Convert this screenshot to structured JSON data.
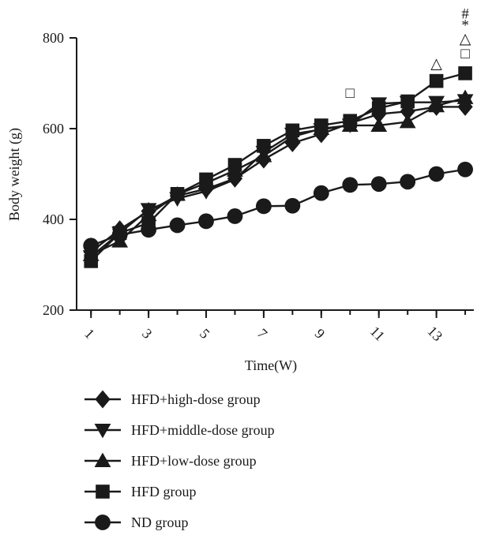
{
  "chart_data": {
    "type": "line",
    "xlabel": "Time(W)",
    "ylabel": "Body weight (g)",
    "x": [
      1,
      2,
      3,
      4,
      5,
      6,
      7,
      8,
      9,
      10,
      11,
      12,
      13,
      14
    ],
    "x_ticks": [
      1,
      3,
      5,
      7,
      9,
      11,
      13
    ],
    "x_tick_labels": [
      "1",
      "3",
      "5",
      "7",
      "9",
      "11",
      "13"
    ],
    "xlim": [
      0.5,
      14.3
    ],
    "ylim": [
      200,
      800
    ],
    "y_ticks": [
      200,
      400,
      600,
      800
    ],
    "y_tick_labels": [
      "200",
      "400",
      "600",
      "800"
    ],
    "grid": false,
    "legend_position": "bottom",
    "series": [
      {
        "name": "HFD+high-dose group",
        "marker": "diamond",
        "values": [
          328,
          378,
          418,
          452,
          467,
          490,
          532,
          568,
          588,
          612,
          632,
          638,
          648,
          648
        ]
      },
      {
        "name": "HFD+middle-dose group",
        "marker": "triangle-down",
        "values": [
          318,
          370,
          422,
          446,
          462,
          488,
          548,
          588,
          598,
          608,
          655,
          658,
          658,
          662
        ]
      },
      {
        "name": "HFD+low-dose group",
        "marker": "triangle-up",
        "values": [
          322,
          352,
          410,
          455,
          480,
          508,
          540,
          582,
          600,
          607,
          607,
          615,
          650,
          668
        ]
      },
      {
        "name": "HFD group",
        "marker": "square",
        "values": [
          308,
          370,
          392,
          456,
          488,
          520,
          562,
          596,
          607,
          617,
          645,
          660,
          705,
          722
        ]
      },
      {
        "name": "ND group",
        "marker": "circle",
        "values": [
          342,
          366,
          377,
          387,
          396,
          407,
          429,
          430,
          458,
          476,
          478,
          483,
          500,
          510
        ]
      }
    ],
    "annotations": [
      {
        "x": 10,
        "y": 680,
        "symbol": "□"
      },
      {
        "x": 13,
        "y": 745,
        "symbol": "△"
      },
      {
        "x": 14,
        "y": 767,
        "symbol": "□"
      },
      {
        "x": 14,
        "y": 800,
        "symbol": "△"
      },
      {
        "x": 14,
        "y": 830,
        "symbol": "*"
      },
      {
        "x": 14,
        "y": 855,
        "symbol": "#"
      }
    ]
  }
}
